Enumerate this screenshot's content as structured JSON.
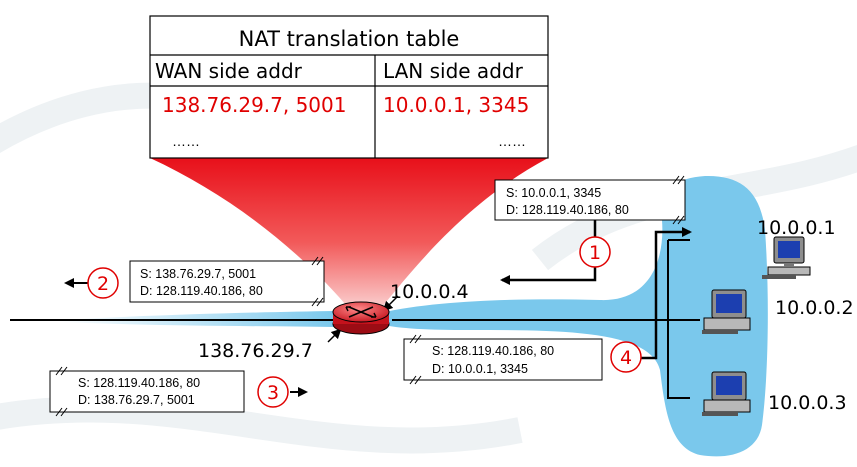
{
  "nat_table": {
    "title": "NAT translation table",
    "header_wan": "WAN side addr",
    "header_lan": "LAN side addr",
    "row_wan": "138.76.29.7, 5001",
    "row_lan": "10.0.0.1, 3345",
    "ellipsis_wan": "……",
    "ellipsis_lan": "……"
  },
  "router": {
    "lan_ip": "10.0.0.4",
    "wan_ip": "138.76.29.7"
  },
  "hosts": [
    {
      "ip": "10.0.0.1"
    },
    {
      "ip": "10.0.0.2"
    },
    {
      "ip": "10.0.0.3"
    }
  ],
  "steps": [
    "1",
    "2",
    "3",
    "4"
  ],
  "packets": {
    "p1": {
      "src": "S: 10.0.0.1, 3345",
      "dst": "D: 128.119.40.186, 80"
    },
    "p2": {
      "src": "S: 138.76.29.7, 5001",
      "dst": "D: 128.119.40.186, 80"
    },
    "p3": {
      "src": "S: 128.119.40.186, 80",
      "dst": "D: 138.76.29.7, 5001"
    },
    "p4": {
      "src": "S: 128.119.40.186, 80",
      "dst": "D: 10.0.0.1, 3345"
    }
  },
  "colors": {
    "lan_cloud": "#7ac8ec",
    "cone_red": "#ee1c1c",
    "highlight_text": "#e00000",
    "router_red": "#e4202a"
  },
  "icons": [
    "router-icon",
    "desktop-computer-icon",
    "step-circle-icon",
    "arrow-icon"
  ]
}
